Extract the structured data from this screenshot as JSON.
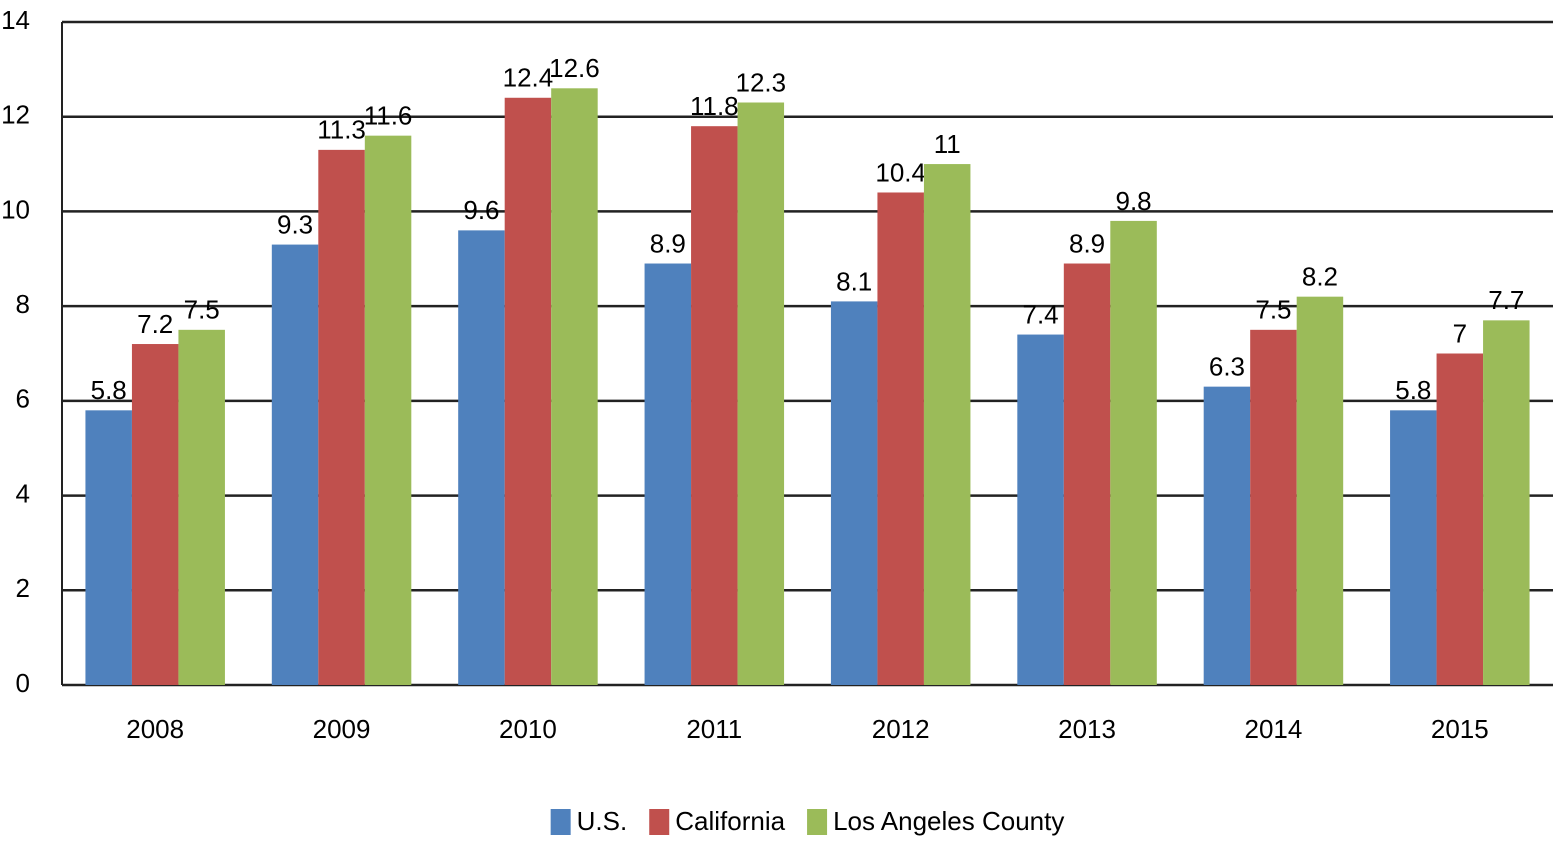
{
  "chart_data": {
    "type": "bar",
    "categories": [
      "2008",
      "2009",
      "2010",
      "2011",
      "2012",
      "2013",
      "2014",
      "2015"
    ],
    "series": [
      {
        "name": "U.S.",
        "color": "#4f81bd",
        "values": [
          5.8,
          9.3,
          9.6,
          8.9,
          8.1,
          7.4,
          6.3,
          5.8
        ]
      },
      {
        "name": "California",
        "color": "#c0504d",
        "values": [
          7.2,
          11.3,
          12.4,
          11.8,
          10.4,
          8.9,
          7.5,
          7
        ]
      },
      {
        "name": "Los Angeles County",
        "color": "#9bbb59",
        "values": [
          7.5,
          11.6,
          12.6,
          12.3,
          11,
          9.8,
          8.2,
          7.7
        ]
      }
    ],
    "ylim": [
      0,
      14
    ],
    "yticks": [
      0,
      2,
      4,
      6,
      8,
      10,
      12,
      14
    ],
    "grid": true,
    "legend": "bottom"
  }
}
